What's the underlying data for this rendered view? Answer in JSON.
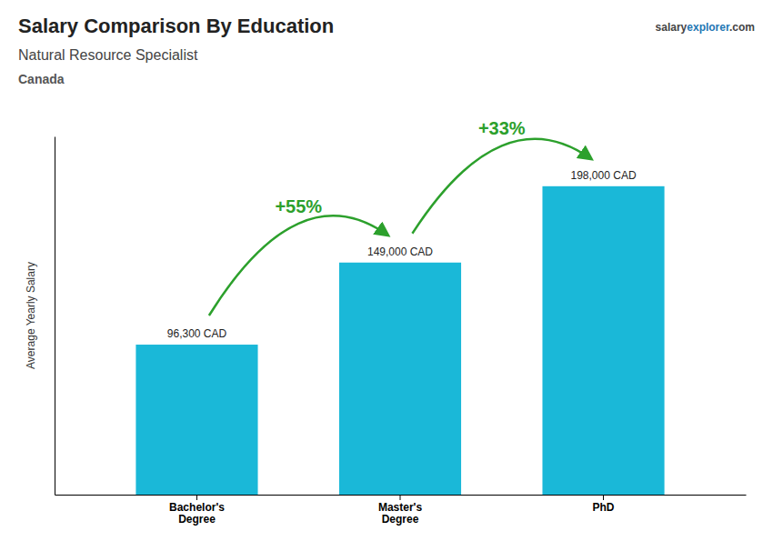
{
  "chart_data": {
    "type": "bar",
    "title": "Salary Comparison By Education",
    "subtitle": "Natural Resource Specialist",
    "caption": "Canada",
    "watermark": [
      "salary",
      "explorer",
      ".com"
    ],
    "y_label": "Average Yearly Salary",
    "categories": [
      "Bachelor's\nDegree",
      "Master's\nDegree",
      "PhD"
    ],
    "values": [
      96300,
      149000,
      198000
    ],
    "value_labels": [
      "96,300 CAD",
      "149,000 CAD",
      "198,000 CAD"
    ],
    "data_labels": true,
    "annotations": [
      "+55%",
      "+33%"
    ],
    "color": "#1ab8d8",
    "ylim": [
      0,
      230000
    ],
    "tick_labels": "x",
    "grid": false
  }
}
